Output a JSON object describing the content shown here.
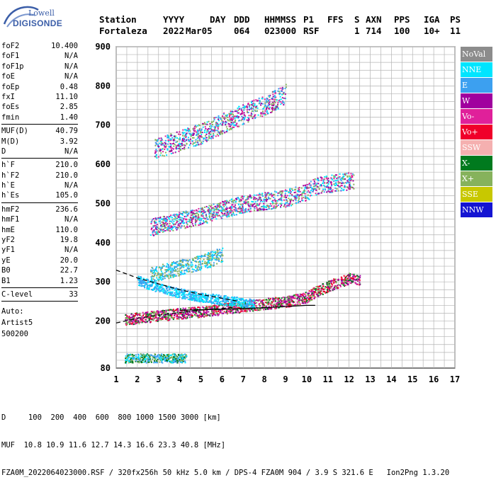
{
  "logo": {
    "line1": "Lowell",
    "line2": "DIGISONDE"
  },
  "header": {
    "labels": [
      "Station",
      "YYYY",
      "DAY",
      "DDD",
      "HHMMSS",
      "P1",
      "FFS",
      "S",
      "AXN",
      "PPS",
      "IGA",
      "PS"
    ],
    "values": [
      "Fortaleza",
      "2022",
      "Mar05",
      "064",
      "023000",
      "RSF",
      "1",
      "714",
      "100",
      "10+",
      "11"
    ]
  },
  "params": {
    "group1": [
      {
        "name": "foF2",
        "value": "10.400"
      },
      {
        "name": "foF1",
        "value": "N/A"
      },
      {
        "name": "foF1p",
        "value": "N/A"
      },
      {
        "name": "foE",
        "value": "N/A"
      },
      {
        "name": "foEp",
        "value": "0.48"
      },
      {
        "name": "fxI",
        "value": "11.10"
      },
      {
        "name": "foEs",
        "value": "2.85"
      },
      {
        "name": "fmin",
        "value": "1.40"
      }
    ],
    "group2": [
      {
        "name": "MUF(D)",
        "value": "40.79"
      },
      {
        "name": "M(D)",
        "value": "3.92"
      },
      {
        "name": "D",
        "value": "N/A"
      }
    ],
    "group3": [
      {
        "name": "h`F",
        "value": "210.0"
      },
      {
        "name": "h`F2",
        "value": "210.0"
      },
      {
        "name": "h`E",
        "value": "N/A"
      },
      {
        "name": "h`Es",
        "value": "105.0"
      }
    ],
    "group4": [
      {
        "name": "hmF2",
        "value": "236.6"
      },
      {
        "name": "hmF1",
        "value": "N/A"
      },
      {
        "name": "hmE",
        "value": "110.0"
      },
      {
        "name": "yF2",
        "value": "19.8"
      },
      {
        "name": "yF1",
        "value": "N/A"
      },
      {
        "name": "yE",
        "value": "20.0"
      },
      {
        "name": "B0",
        "value": "22.7"
      },
      {
        "name": "B1",
        "value": "1.23"
      }
    ],
    "group5": [
      {
        "name": "C-level",
        "value": "33"
      }
    ],
    "auto": [
      "Auto:",
      "Artist5",
      "500200"
    ]
  },
  "legend": [
    {
      "label": "NoVal",
      "color": "#8c8c8c"
    },
    {
      "label": "NNE",
      "color": "#00e5ff"
    },
    {
      "label": "E",
      "color": "#3ca0f0"
    },
    {
      "label": "W",
      "color": "#a0009e"
    },
    {
      "label": "Vo-",
      "color": "#e0209a"
    },
    {
      "label": "Vo+",
      "color": "#f0002a"
    },
    {
      "label": "SSW",
      "color": "#f5b0b0"
    },
    {
      "label": "X-",
      "color": "#007a1e"
    },
    {
      "label": "X+",
      "color": "#86b25c"
    },
    {
      "label": "SSE",
      "color": "#c8c800"
    },
    {
      "label": "NNW",
      "color": "#1414d2"
    }
  ],
  "footer": {
    "line1": "D     100  200  400  600  800 1000 1500 3000 [km]",
    "line2": "MUF  10.8 10.9 11.6 12.7 14.3 16.6 23.3 40.8 [MHz]",
    "line3": "FZA0M_2022064023000.RSF / 320fx256h 50 kHz 5.0 km / DPS-4 FZA0M 904 / 3.9 S 321.6 E   Ion2Png 1.3.20"
  },
  "chart_data": {
    "type": "scatter",
    "x_ticks": [
      1,
      2,
      3,
      4,
      5,
      6,
      7,
      8,
      9,
      10,
      11,
      12,
      13,
      14,
      15,
      16,
      17
    ],
    "y_ticks": [
      80,
      200,
      300,
      400,
      500,
      600,
      700,
      800,
      900
    ],
    "xlim": [
      1,
      17
    ],
    "ylim": [
      80,
      900
    ],
    "grid": true,
    "traces": [
      {
        "name": "Es",
        "x": [
          1.4,
          2.85
        ],
        "y": [
          110,
          100
        ],
        "xrange": [
          1.4,
          4.3
        ],
        "yrange": [
          95,
          118
        ],
        "colors": [
          "X-",
          "NNE",
          "E",
          "X+"
        ]
      },
      {
        "name": "F-virtual",
        "x": [
          1.4,
          3.0,
          5.0,
          7.0,
          8.0,
          9.0,
          10.0,
          10.4,
          11.0,
          11.5,
          12.0,
          12.5
        ],
        "y": [
          205,
          215,
          225,
          238,
          245,
          250,
          262,
          275,
          290,
          300,
          310,
          305
        ],
        "colors": [
          "Vo+",
          "X+",
          "Vo-",
          "X-",
          "W"
        ]
      },
      {
        "name": "F-2hop",
        "x": [
          2.6,
          5.0,
          7.0,
          9.0,
          10.0,
          10.4,
          11.5,
          12.2
        ],
        "y": [
          440,
          470,
          500,
          515,
          530,
          545,
          555,
          560
        ],
        "colors": [
          "E",
          "W",
          "Vo-",
          "NNE",
          "X+"
        ]
      },
      {
        "name": "F-3hop",
        "x": [
          2.8,
          5.0,
          7.0,
          8.3,
          9.0
        ],
        "y": [
          640,
          680,
          730,
          760,
          780
        ],
        "colors": [
          "E",
          "W",
          "Vo-",
          "NNE",
          "X+"
        ]
      },
      {
        "name": "E-oblique",
        "x": [
          2.0,
          3.0,
          4.0,
          5.0,
          6.0,
          7.0,
          7.5
        ],
        "y": [
          305,
          285,
          272,
          262,
          255,
          248,
          245
        ],
        "colors": [
          "E",
          "NNE"
        ]
      },
      {
        "name": "E-2hop",
        "x": [
          2.6,
          3.5,
          4.5,
          5.5,
          6.0
        ],
        "y": [
          320,
          330,
          345,
          360,
          370
        ],
        "colors": [
          "E",
          "X+",
          "NNE"
        ]
      }
    ],
    "model_lines": [
      {
        "style": "dashed",
        "x": [
          1,
          2,
          3,
          4,
          5,
          6,
          6.8
        ],
        "y": [
          330,
          310,
          295,
          280,
          268,
          258,
          250
        ]
      },
      {
        "style": "dashed",
        "x": [
          1,
          2,
          3,
          4,
          5,
          6,
          6.5
        ],
        "y": [
          195,
          207,
          215,
          222,
          228,
          232,
          235
        ]
      },
      {
        "style": "solid",
        "x": [
          4.0,
          6.0,
          8.0,
          10.0,
          10.4
        ],
        "y": [
          228,
          230,
          234,
          240,
          240
        ]
      }
    ]
  }
}
